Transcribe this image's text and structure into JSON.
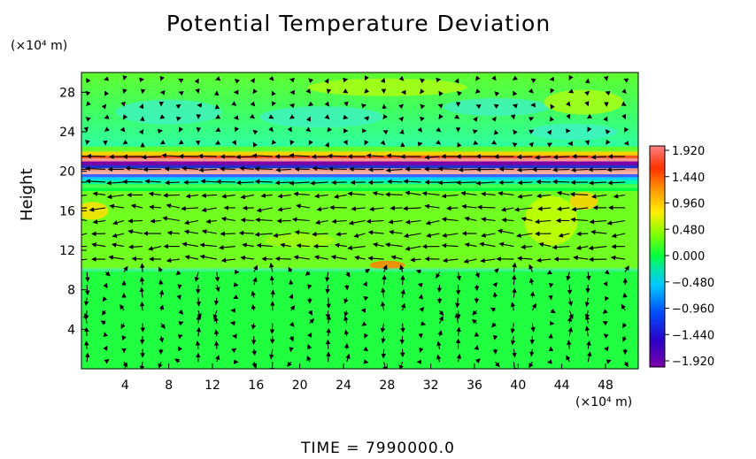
{
  "chart_data": {
    "type": "heatmap",
    "title": "Potential Temperature Deviation",
    "ylabel": "Height",
    "y_unit": "(×10⁴ m)",
    "x_unit": "(×10⁴ m)",
    "x_ticks": [
      4,
      8,
      12,
      16,
      20,
      24,
      28,
      32,
      36,
      40,
      44,
      48
    ],
    "y_ticks": [
      4,
      8,
      12,
      16,
      20,
      24,
      28
    ],
    "xlim": [
      0,
      51
    ],
    "ylim": [
      0,
      30
    ],
    "colorbar": {
      "range": [
        -1.92,
        1.92
      ],
      "labels": [
        "1.920",
        "1.440",
        "0.960",
        "0.480",
        "0.000",
        "−0.480",
        "−0.960",
        "−1.440",
        "−1.920"
      ]
    },
    "layers": [
      {
        "name": "upper band",
        "y": [
          18.5,
          22.5
        ],
        "value": "strong alternating ±1.9 stripes"
      },
      {
        "name": "mid layer",
        "y": [
          10,
          18
        ],
        "value": "weak positive 0.2–0.9"
      },
      {
        "name": "lower layer",
        "y": [
          0,
          10
        ],
        "value": "near 0.0–0.3"
      },
      {
        "name": "top layer",
        "y": [
          22.5,
          30
        ],
        "value": "0.0 to 0.5 with cyan pockets near −0.3"
      }
    ],
    "vector_field": {
      "upper_band_flow": "leftward along y≈20",
      "mid_layer_flow": "leftward along y≈14–17",
      "lower_layer_flow": "vertical circulation cells"
    }
  },
  "footer": {
    "time_label": "TIME  =  7990000.0"
  },
  "colors": {
    "background": "#00ff40",
    "colormap": [
      "#7a00a8",
      "#2a00c8",
      "#0050ff",
      "#00c8ff",
      "#00e8a0",
      "#00ff40",
      "#80ff00",
      "#ffee00",
      "#ff9900",
      "#ff3000",
      "#ff8080"
    ]
  }
}
